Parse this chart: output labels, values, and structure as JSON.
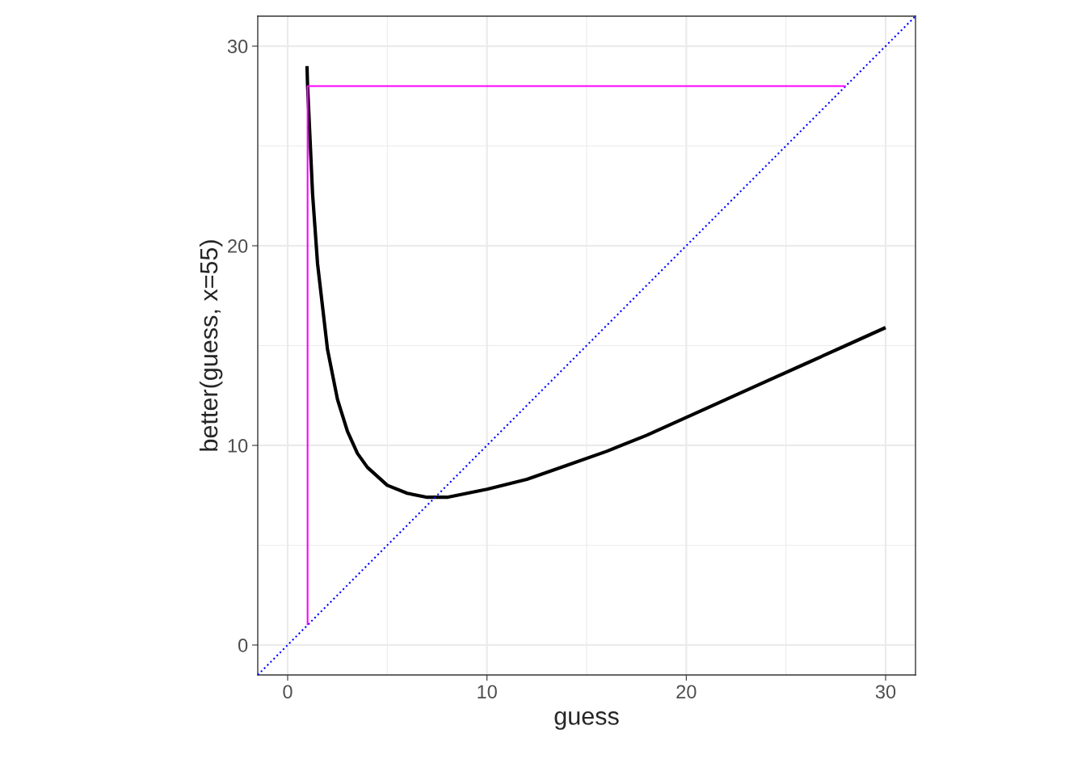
{
  "chart_data": {
    "type": "line",
    "xlabel": "guess",
    "ylabel": "better(guess, x=55)",
    "xlim": [
      -1.5,
      31.5
    ],
    "ylim": [
      -1.5,
      31.5
    ],
    "xticks": [
      0,
      10,
      20,
      30
    ],
    "yticks": [
      0,
      10,
      20,
      30
    ],
    "grid": true,
    "legend": false,
    "series": [
      {
        "color": "#000000",
        "x": [
          0.97,
          1,
          1.25,
          1.5,
          2,
          2.5,
          3,
          3.5,
          4,
          5,
          6,
          7,
          7.5,
          8,
          9,
          10,
          12,
          14,
          16,
          18,
          20,
          22,
          24,
          26,
          28,
          30
        ],
        "values": [
          29.0,
          28.0,
          22.6,
          19.1,
          14.8,
          12.3,
          10.7,
          9.6,
          8.9,
          8.0,
          7.6,
          7.4,
          7.4,
          7.4,
          7.6,
          7.8,
          8.3,
          9.0,
          9.7,
          10.5,
          11.4,
          12.3,
          13.2,
          14.1,
          15.0,
          15.9
        ]
      },
      {
        "color": "#0000ff",
        "line_style": "dotted",
        "x": [
          -1.5,
          31.5
        ],
        "values": [
          -1.5,
          31.5
        ]
      },
      {
        "color": "#ff00ff",
        "x": [
          1,
          1,
          28
        ],
        "values": [
          1,
          28,
          28
        ]
      }
    ]
  }
}
